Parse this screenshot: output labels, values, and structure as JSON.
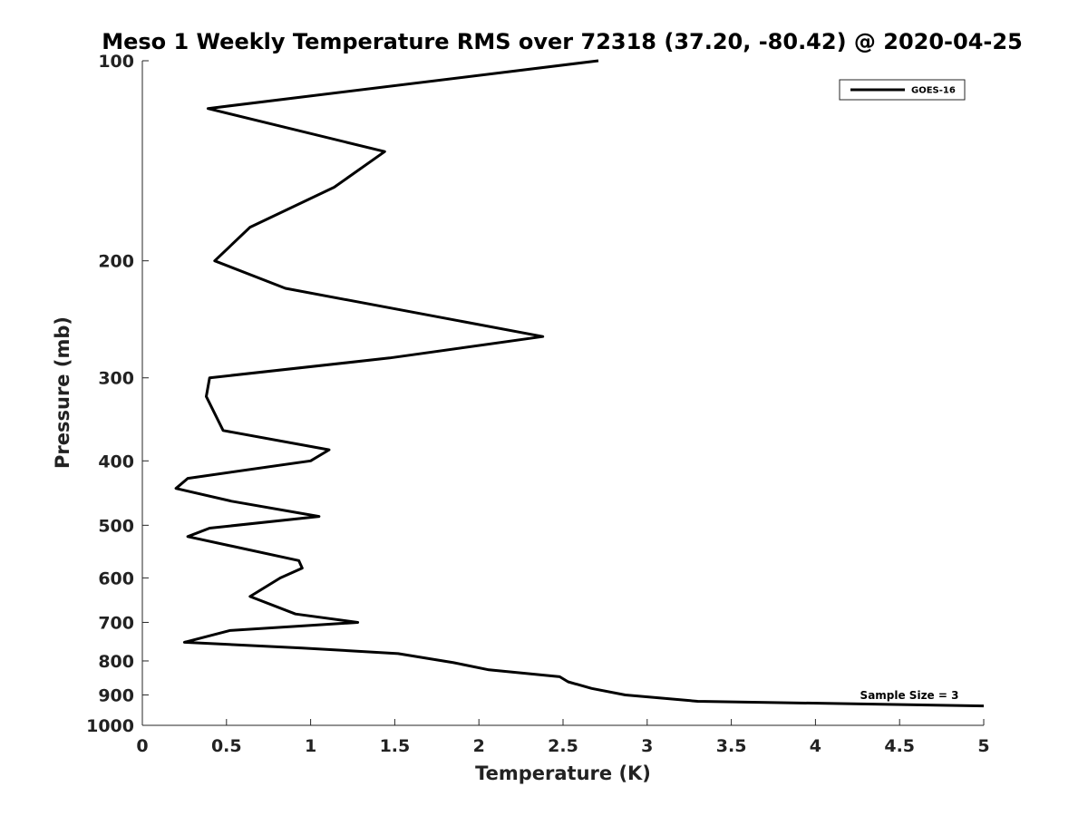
{
  "chart_data": {
    "type": "line",
    "title": "Meso 1 Weekly Temperature RMS over 72318 (37.20, -80.42) @ 2020-04-25",
    "xlabel": "Temperature (K)",
    "ylabel": "Pressure (mb)",
    "xlim": [
      0,
      5
    ],
    "ylim": [
      100,
      1000
    ],
    "y_scale": "log",
    "y_reversed": true,
    "grid": false,
    "legend_position": "top-right",
    "x_ticks": [
      0,
      0.5,
      1,
      1.5,
      2,
      2.5,
      3,
      3.5,
      4,
      4.5,
      5
    ],
    "x_tick_labels": [
      "0",
      "0.5",
      "1",
      "1.5",
      "2",
      "2.5",
      "3",
      "3.5",
      "4",
      "4.5",
      "5"
    ],
    "y_ticks": [
      100,
      200,
      300,
      400,
      500,
      600,
      700,
      800,
      900,
      1000
    ],
    "y_tick_labels": [
      "100",
      "200",
      "300",
      "400",
      "500",
      "600",
      "700",
      "800",
      "900",
      "1000"
    ],
    "series": [
      {
        "name": "GOES-16",
        "color": "#000000",
        "x": [
          2.71,
          0.39,
          1.44,
          1.14,
          0.64,
          0.43,
          0.85,
          2.38,
          1.47,
          0.4,
          0.38,
          0.48,
          1.11,
          1.0,
          0.27,
          0.2,
          0.53,
          1.05,
          0.4,
          0.27,
          0.93,
          0.95,
          0.82,
          0.64,
          0.91,
          1.28,
          0.52,
          0.25,
          0.95,
          1.52,
          1.85,
          2.06,
          2.48,
          2.53,
          2.67,
          2.87,
          3.3,
          5.0
        ],
        "y": [
          100,
          118,
          137,
          155,
          178,
          200,
          220,
          260,
          280,
          300,
          320,
          360,
          385,
          400,
          425,
          440,
          460,
          485,
          505,
          520,
          565,
          580,
          600,
          640,
          680,
          700,
          720,
          750,
          765,
          780,
          805,
          825,
          845,
          860,
          880,
          900,
          920,
          935
        ]
      }
    ],
    "annotations": [
      "Sample Size = 3"
    ]
  }
}
